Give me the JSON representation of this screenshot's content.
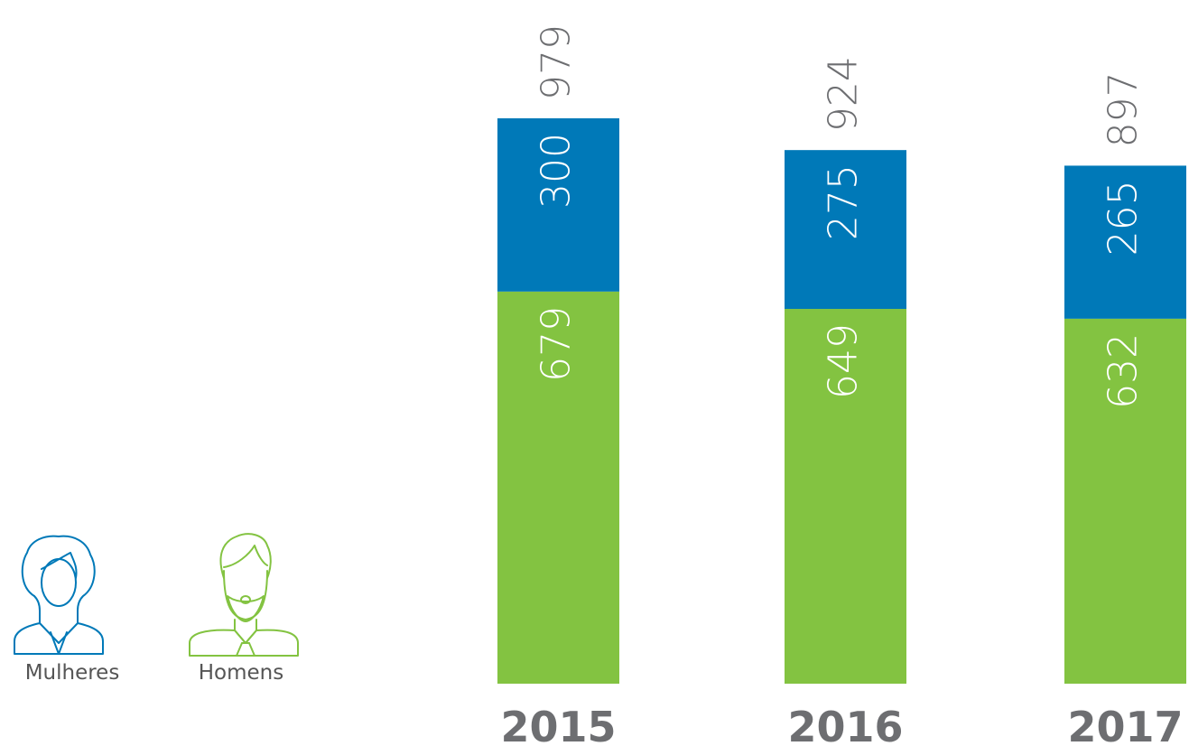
{
  "chart_data": {
    "type": "stacked_bar",
    "categories": [
      "2015",
      "2016",
      "2017"
    ],
    "series": [
      {
        "name": "Homens",
        "color": "#83c341",
        "values": [
          679,
          649,
          632
        ]
      },
      {
        "name": "Mulheres",
        "color": "#0079b8",
        "values": [
          300,
          275,
          265
        ]
      }
    ],
    "totals": [
      979,
      924,
      897
    ]
  }
}
